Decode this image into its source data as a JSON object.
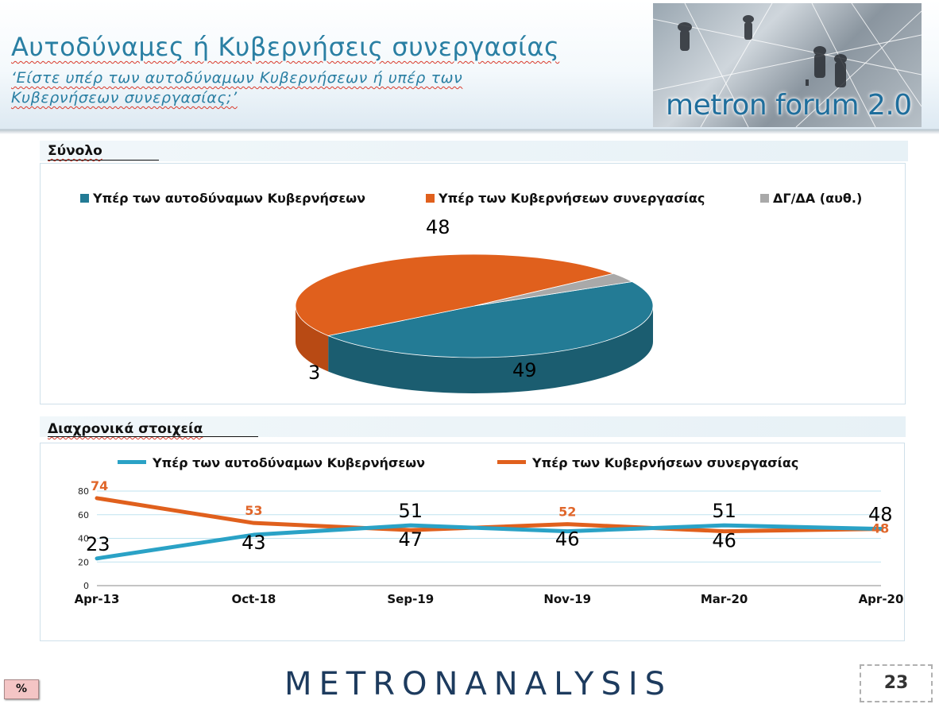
{
  "header": {
    "title": "Αυτοδύναμες ή Κυβερνήσεις συνεργασίας",
    "subtitle": "‘Είστε υπέρ των αυτοδύναμων Κυβερνήσεων ή υπέρ των Κυβερνήσεων συνεργασίας;’",
    "brand_image_text": "metron forum 2.0"
  },
  "sections": {
    "total_label": "Σύνολο",
    "trend_label": "Διαχρονικά στοιχεία"
  },
  "colors": {
    "teal": "#237b95",
    "teal_line": "#2aa2c6",
    "orange": "#e0601d",
    "gray": "#a9a9a9"
  },
  "chart_data": [
    {
      "type": "pie",
      "legend_placement": "top",
      "slices": [
        {
          "name": "Υπέρ των αυτοδύναμων Κυβερνήσεων",
          "value": 48,
          "label": "48"
        },
        {
          "name": "Υπέρ των Κυβερνήσεων συνεργασίας",
          "value": 49,
          "label": "49"
        },
        {
          "name": "ΔΓ/ΔΑ (αυθ.)",
          "value": 3,
          "label": "3"
        }
      ]
    },
    {
      "type": "line",
      "legend_placement": "top",
      "categories": [
        "Apr-13",
        "Oct-18",
        "Sep-19",
        "Nov-19",
        "Mar-20",
        "Apr-20"
      ],
      "ylim": [
        0,
        80
      ],
      "yticks": [
        "0",
        "20",
        "40",
        "60",
        "80"
      ],
      "grid": true,
      "series": [
        {
          "name": "Υπέρ των αυτοδύναμων Κυβερνήσεων",
          "values": [
            23,
            43,
            51,
            46,
            51,
            48
          ]
        },
        {
          "name": "Υπέρ των Κυβερνήσεων συνεργασίας",
          "values": [
            74,
            53,
            47,
            52,
            46,
            48
          ]
        }
      ]
    }
  ],
  "footer": {
    "logo_left": "METRON",
    "logo_right": "ANALYSIS",
    "percent_badge": "%",
    "page_number": "23"
  }
}
